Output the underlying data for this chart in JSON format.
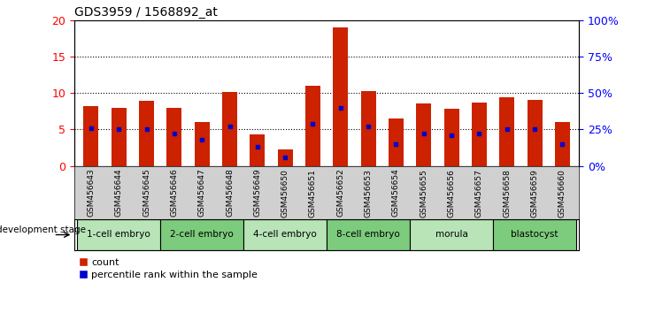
{
  "title": "GDS3959 / 1568892_at",
  "samples": [
    "GSM456643",
    "GSM456644",
    "GSM456645",
    "GSM456646",
    "GSM456647",
    "GSM456648",
    "GSM456649",
    "GSM456650",
    "GSM456651",
    "GSM456652",
    "GSM456653",
    "GSM456654",
    "GSM456655",
    "GSM456656",
    "GSM456657",
    "GSM456658",
    "GSM456659",
    "GSM456660"
  ],
  "count_values": [
    8.2,
    8.0,
    9.0,
    8.0,
    6.0,
    10.2,
    4.3,
    2.3,
    11.0,
    19.0,
    10.3,
    6.5,
    8.6,
    7.9,
    8.7,
    9.4,
    9.1,
    6.0
  ],
  "percentile_values": [
    26.0,
    25.0,
    25.0,
    22.0,
    18.0,
    27.0,
    13.0,
    6.0,
    29.0,
    40.0,
    27.0,
    15.0,
    22.0,
    21.0,
    22.5,
    25.0,
    25.0,
    15.0
  ],
  "stages": [
    {
      "label": "1-cell embryo",
      "start": 0,
      "end": 3,
      "color": "#b8e4b8"
    },
    {
      "label": "2-cell embryo",
      "start": 3,
      "end": 6,
      "color": "#7dcc7d"
    },
    {
      "label": "4-cell embryo",
      "start": 6,
      "end": 9,
      "color": "#b8e4b8"
    },
    {
      "label": "8-cell embryo",
      "start": 9,
      "end": 12,
      "color": "#7dcc7d"
    },
    {
      "label": "morula",
      "start": 12,
      "end": 15,
      "color": "#b8e4b8"
    },
    {
      "label": "blastocyst",
      "start": 15,
      "end": 18,
      "color": "#7dcc7d"
    }
  ],
  "bar_color": "#cc2200",
  "percentile_color": "#0000cc",
  "tick_bg_color": "#d0d0d0",
  "ylim_left": [
    0,
    20
  ],
  "ylim_right": [
    0,
    100
  ],
  "yticks_left": [
    0,
    5,
    10,
    15,
    20
  ],
  "yticks_right": [
    0,
    25,
    50,
    75,
    100
  ],
  "bar_width": 0.55
}
